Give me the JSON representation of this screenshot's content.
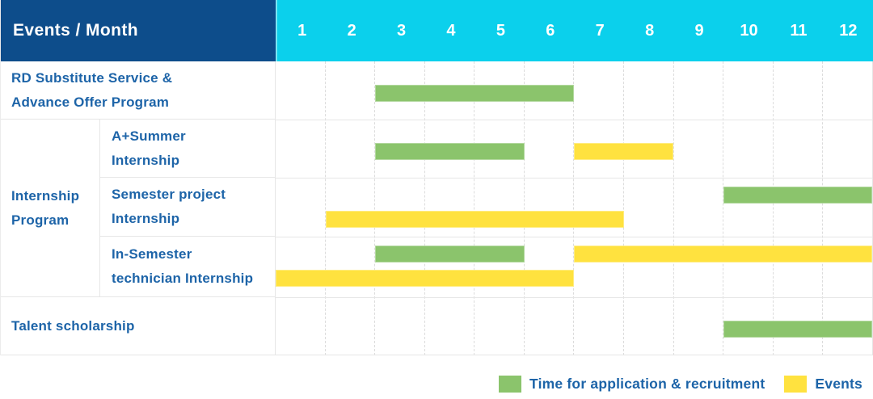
{
  "colors": {
    "header_bg": "#0d4d8b",
    "month_header_bg": "#0bd0ec",
    "label_text": "#1d64a8",
    "application_green": "#8bc46c",
    "events_yellow": "#ffe23f",
    "gridline": "#dcdcdc"
  },
  "table": {
    "corner_label": "Events / Month",
    "row_labels": {
      "rd": "RD Substitute Service &\nAdvance Offer Program",
      "internship_group": "Internship\nProgram",
      "a_summer": "A+Summer\nInternship",
      "semester_project": "Semester project\nInternship",
      "in_semester": "In-Semester\ntechnician Internship",
      "talent": "Talent scholarship"
    }
  },
  "chart_data": {
    "type": "bar",
    "variant": "gantt-timeline",
    "title": "Events / Month",
    "x": {
      "label": "Month",
      "ticks": [
        "1",
        "2",
        "3",
        "4",
        "5",
        "6",
        "7",
        "8",
        "9",
        "10",
        "11",
        "12"
      ],
      "range": [
        1,
        12
      ]
    },
    "series_colors": {
      "Time for application & recruitment": "#8bc46c",
      "Events": "#ffe23f"
    },
    "rows": [
      {
        "row": "RD Substitute Service & Advance Offer Program",
        "bars": [
          {
            "series": "Time for application & recruitment",
            "start_month": 3,
            "end_month": 6,
            "line": "single"
          }
        ]
      },
      {
        "row": "A+Summer Internship",
        "group": "Internship Program",
        "bars": [
          {
            "series": "Time for application & recruitment",
            "start_month": 3,
            "end_month": 5,
            "line": "single"
          },
          {
            "series": "Events",
            "start_month": 7,
            "end_month": 8,
            "line": "single"
          }
        ]
      },
      {
        "row": "Semester project Internship",
        "group": "Internship Program",
        "bars": [
          {
            "series": "Time for application & recruitment",
            "start_month": 10,
            "end_month": 12,
            "line": "top"
          },
          {
            "series": "Events",
            "start_month": 2,
            "end_month": 7,
            "line": "bottom"
          }
        ]
      },
      {
        "row": "In-Semester technician Internship",
        "group": "Internship Program",
        "bars": [
          {
            "series": "Time for application & recruitment",
            "start_month": 3,
            "end_month": 5,
            "line": "top"
          },
          {
            "series": "Events",
            "start_month": 7,
            "end_month": 12,
            "line": "top"
          },
          {
            "series": "Events",
            "start_month": 1,
            "end_month": 6,
            "line": "bottom"
          }
        ]
      },
      {
        "row": "Talent scholarship",
        "bars": [
          {
            "series": "Time for application & recruitment",
            "start_month": 10,
            "end_month": 12,
            "line": "single"
          }
        ]
      }
    ],
    "legend": {
      "position": "bottom-right",
      "entries": [
        {
          "label": "Time for application & recruitment",
          "color": "#8bc46c"
        },
        {
          "label": "Events",
          "color": "#ffe23f"
        }
      ]
    }
  }
}
